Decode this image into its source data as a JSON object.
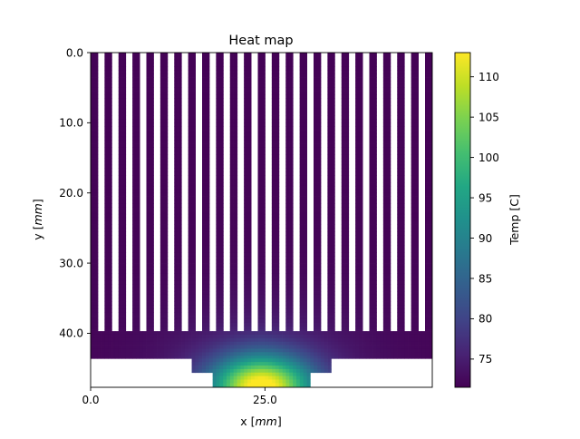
{
  "chart_data": {
    "type": "heatmap",
    "title": "Heat map",
    "xlabel_prefix": "x [",
    "xlabel_unit": "mm",
    "xlabel_suffix": "]",
    "ylabel_prefix": "y [",
    "ylabel_unit": "mm",
    "ylabel_suffix": "]",
    "xlim": [
      0,
      49
    ],
    "ylim": [
      47.7,
      0
    ],
    "x_ticks": [
      {
        "value": 0,
        "label": "0.0"
      },
      {
        "value": 25,
        "label": "25.0"
      }
    ],
    "y_ticks": [
      {
        "value": 0,
        "label": "0.0"
      },
      {
        "value": 10,
        "label": "10.0"
      },
      {
        "value": 20,
        "label": "20.0"
      },
      {
        "value": 30,
        "label": "30.0"
      },
      {
        "value": 40,
        "label": "40.0"
      }
    ],
    "colorbar": {
      "label": "Temp [C]",
      "min": 71.5,
      "max": 113,
      "colormap": "viridis",
      "ticks": [
        {
          "value": 75,
          "label": "75"
        },
        {
          "value": 80,
          "label": "80"
        },
        {
          "value": 85,
          "label": "85"
        },
        {
          "value": 90,
          "label": "90"
        },
        {
          "value": 95,
          "label": "95"
        },
        {
          "value": 100,
          "label": "100"
        },
        {
          "value": 105,
          "label": "105"
        },
        {
          "value": 110,
          "label": "110"
        }
      ]
    },
    "geometry": {
      "fin_count": 25,
      "fin_width_mm": 1.04,
      "fin_top_mm": 0,
      "fin_bottom_mm": 39.7,
      "base_x_mm": [
        0,
        49
      ],
      "base_y_mm": [
        39.7,
        43.6
      ],
      "step1_x_mm": [
        14.5,
        34.5
      ],
      "step1_y_mm": [
        43.6,
        45.6
      ],
      "step2_x_mm": [
        17.5,
        31.5
      ],
      "step2_y_mm": [
        45.6,
        47.7
      ]
    },
    "heat_source": {
      "center_x_mm": 24.5,
      "center_y_mm": 47.7,
      "max_temp": 113,
      "ambient_temp": 71.8
    }
  }
}
